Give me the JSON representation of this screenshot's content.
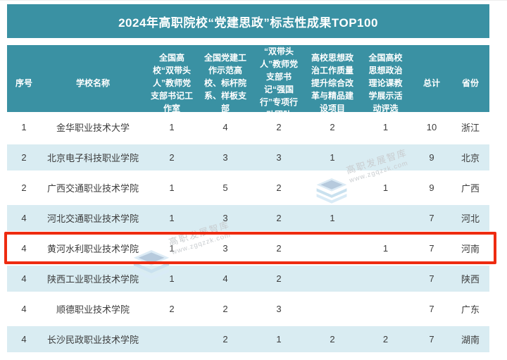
{
  "title": "2024年高职院校“党建思政”标志性成果TOP100",
  "chart_data": {
    "type": "table",
    "title": "2024年高职院校“党建思政”标志性成果TOP100",
    "columns": [
      "序号",
      "学校名称",
      "全国高校“双带头人”教师党支部书记工作室",
      "全国党建工作示范高校、标杆院系、样板支部",
      "“双带头人”教师党支部书记“强国行”专项行动团队",
      "高校思想政治工作质量提升综合改革与精品建设项目",
      "全国高校思想政治理论课教学展示活动评选",
      "总计",
      "省份"
    ],
    "rows": [
      {
        "highlighted": false,
        "cells": [
          "1",
          "金华职业技术大学",
          "1",
          "4",
          "2",
          "2",
          "1",
          "10",
          "浙江"
        ]
      },
      {
        "highlighted": false,
        "cells": [
          "2",
          "北京电子科技职业学院",
          "2",
          "3",
          "3",
          "1",
          "",
          "9",
          "北京"
        ]
      },
      {
        "highlighted": false,
        "cells": [
          "2",
          "广西交通职业技术学院",
          "1",
          "5",
          "2",
          "",
          "1",
          "9",
          "广西"
        ]
      },
      {
        "highlighted": false,
        "cells": [
          "4",
          "河北交通职业技术学院",
          "1",
          "3",
          "2",
          "1",
          "",
          "7",
          "河北"
        ]
      },
      {
        "highlighted": true,
        "cells": [
          "4",
          "黄河水利职业技术学院",
          "1",
          "3",
          "2",
          "",
          "1",
          "7",
          "河南"
        ]
      },
      {
        "highlighted": false,
        "cells": [
          "4",
          "陕西工业职业技术学院",
          "1",
          "4",
          "2",
          "",
          "",
          "7",
          "陕西"
        ]
      },
      {
        "highlighted": false,
        "cells": [
          "4",
          "顺德职业技术学院",
          "2",
          "2",
          "3",
          "",
          "",
          "7",
          "广东"
        ]
      },
      {
        "highlighted": false,
        "cells": [
          "4",
          "长沙民政职业技术学院",
          "",
          "2",
          "1",
          "2",
          "2",
          "7",
          "湖南"
        ]
      }
    ]
  },
  "watermark": {
    "brand": "高职发展智库",
    "url": "www.zgqzzk.com",
    "logo_icon": "layered-stack-icon"
  },
  "colors": {
    "header_teal": "#3a91a3",
    "row_alt_blue": "#d9ecf2",
    "highlight_red": "#ee2b10",
    "watermark_gray": "#c9cdd0"
  }
}
